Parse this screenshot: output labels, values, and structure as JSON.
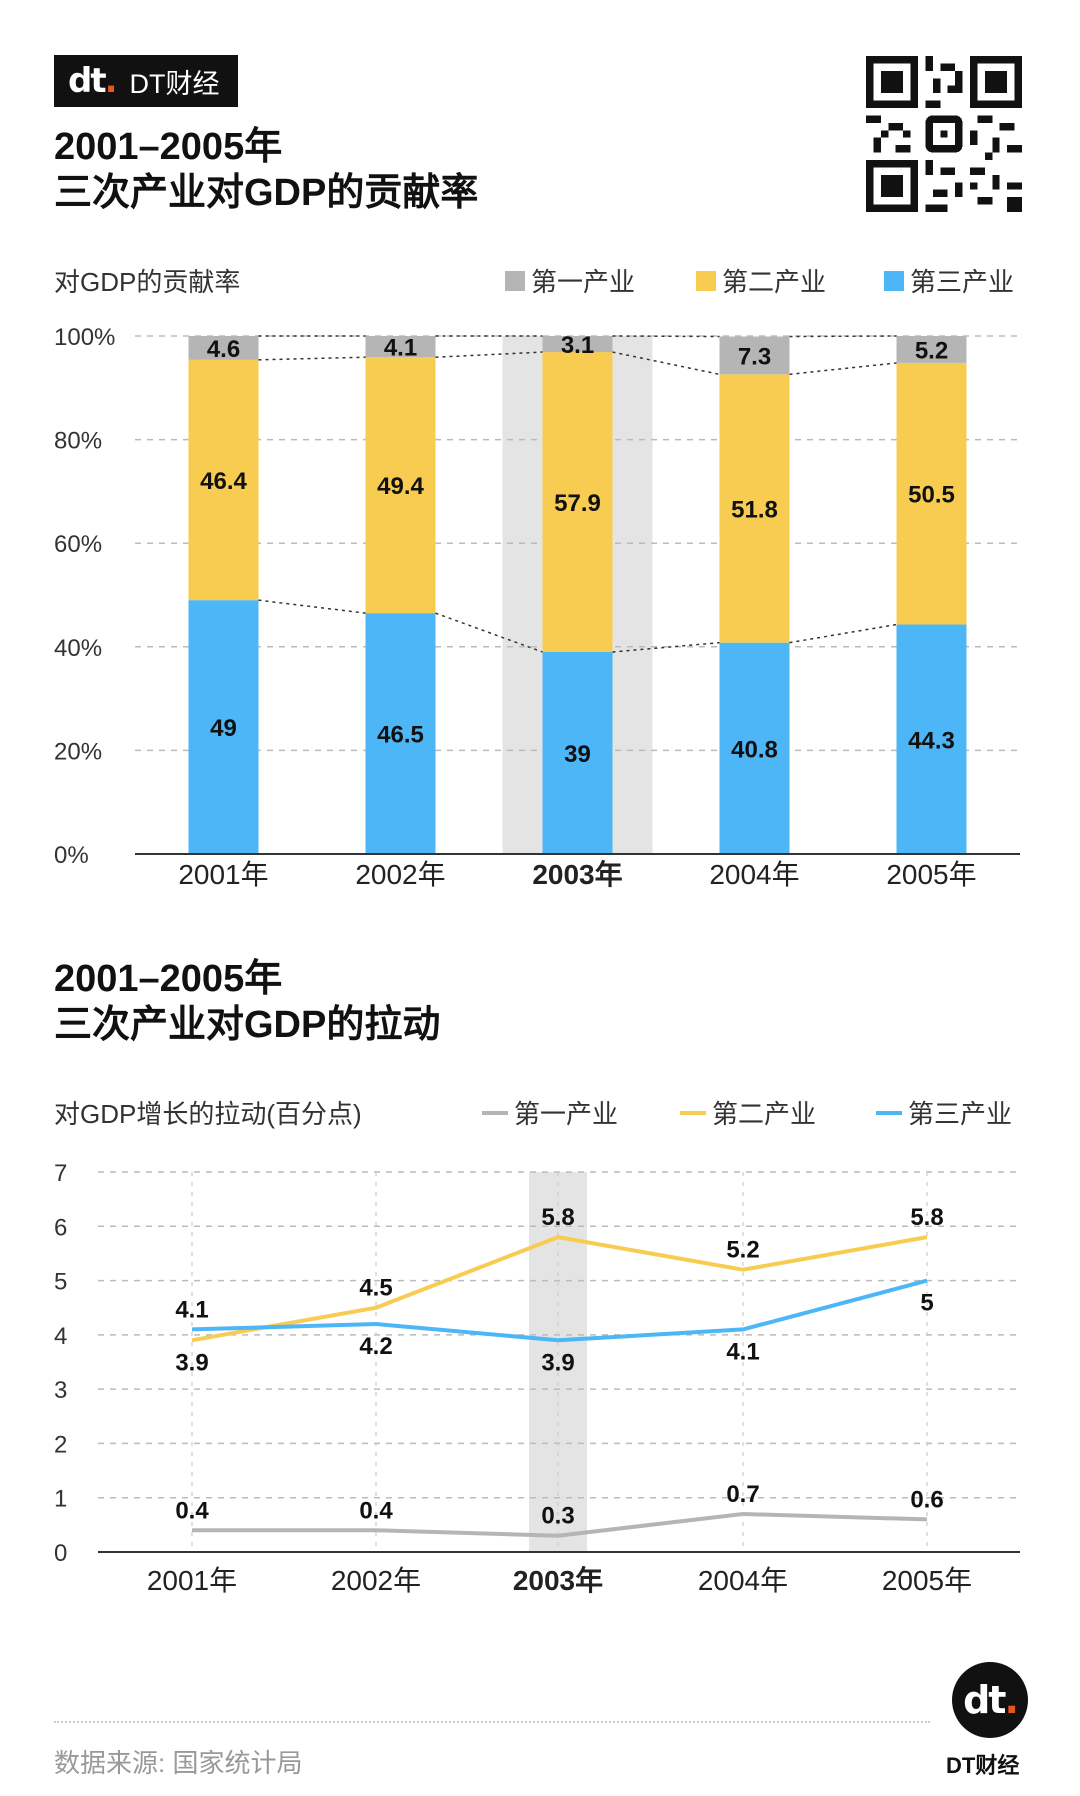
{
  "brand": {
    "logo_mark": "dt",
    "logo_text": "DT财经"
  },
  "chart1": {
    "title_line1": "2001–2005年",
    "title_line2": "三次产业对GDP的贡献率",
    "y_label": "对GDP的贡献率"
  },
  "chart2": {
    "title_line1": "2001–2005年",
    "title_line2": "三次产业对GDP的拉动",
    "y_label": "对GDP增长的拉动(百分点)"
  },
  "footer": {
    "source": "数据来源: 国家统计局",
    "brand_text": "DT财经"
  },
  "colors": {
    "primary": "#b5b5b5",
    "secondary": "#f7cc50",
    "tertiary": "#4db6f7",
    "highlight": "#e4e4e4"
  },
  "chart_data": [
    {
      "type": "bar",
      "stacked": true,
      "title": "三次产业对GDP的贡献率",
      "ylabel": "对GDP的贡献率",
      "categories": [
        "2001年",
        "2002年",
        "2003年",
        "2004年",
        "2005年"
      ],
      "highlight_category": "2003年",
      "yticks": [
        "0%",
        "20%",
        "40%",
        "60%",
        "80%",
        "100%"
      ],
      "ylim": [
        0,
        100
      ],
      "series": [
        {
          "name": "第三产业",
          "color": "#4db6f7",
          "values": [
            49,
            46.5,
            39,
            40.8,
            44.3
          ]
        },
        {
          "name": "第二产业",
          "color": "#f7cc50",
          "values": [
            46.4,
            49.4,
            57.9,
            51.8,
            50.5
          ]
        },
        {
          "name": "第一产业",
          "color": "#b5b5b5",
          "values": [
            4.6,
            4.1,
            3.1,
            7.3,
            5.2
          ]
        }
      ],
      "legend": [
        "第一产业",
        "第二产业",
        "第三产业"
      ]
    },
    {
      "type": "line",
      "title": "三次产业对GDP的拉动",
      "ylabel": "对GDP增长的拉动(百分点)",
      "categories": [
        "2001年",
        "2002年",
        "2003年",
        "2004年",
        "2005年"
      ],
      "highlight_category": "2003年",
      "yticks": [
        "0",
        "1",
        "2",
        "3",
        "4",
        "5",
        "6",
        "7"
      ],
      "ylim": [
        0,
        7
      ],
      "series": [
        {
          "name": "第一产业",
          "color": "#b5b5b5",
          "values": [
            0.4,
            0.4,
            0.3,
            0.7,
            0.6
          ]
        },
        {
          "name": "第二产业",
          "color": "#f7cc50",
          "values": [
            3.9,
            4.5,
            5.8,
            5.2,
            5.8
          ]
        },
        {
          "name": "第三产业",
          "color": "#4db6f7",
          "values": [
            4.1,
            4.2,
            3.9,
            4.1,
            5
          ]
        }
      ],
      "legend": [
        "第一产业",
        "第二产业",
        "第三产业"
      ]
    }
  ]
}
